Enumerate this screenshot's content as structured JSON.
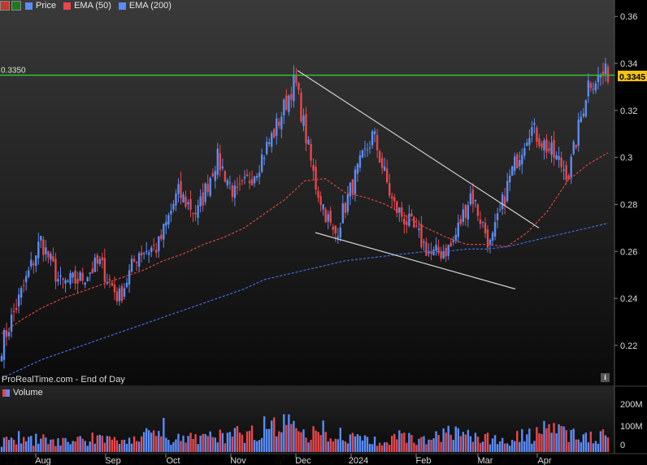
{
  "toolbar": {
    "legend_price": "Price",
    "legend_ema50": "EMA (50)",
    "legend_ema200": "EMA (200)",
    "legend_volume": "Volume",
    "close_icon": "close-icon",
    "arrow_icon": "trend-up-icon"
  },
  "watermark": "ProRealTime.com - End of Day",
  "info_icon": "i",
  "colors": {
    "up": "#5a8cf5",
    "down": "#e8474b",
    "ema50": "#d9453e",
    "ema200": "#3e6ee0",
    "level_line": "#2ec42e",
    "price_badge": "#f2c40e",
    "trendline": "#cfcfcf"
  },
  "chart_data": [
    {
      "type": "candlestick",
      "title": "",
      "series": [
        {
          "name": "Price",
          "kind": "candles"
        },
        {
          "name": "EMA (50)",
          "kind": "line",
          "style": "dashed",
          "values": [
            0.225,
            0.231,
            0.236,
            0.24,
            0.243,
            0.246,
            0.249,
            0.252,
            0.256,
            0.259,
            0.263,
            0.266,
            0.27,
            0.276,
            0.282,
            0.29,
            0.291,
            0.285,
            0.283,
            0.28,
            0.275,
            0.27,
            0.266,
            0.263,
            0.263,
            0.262,
            0.268,
            0.277,
            0.29,
            0.297,
            0.302
          ]
        },
        {
          "name": "EMA (200)",
          "kind": "line",
          "style": "dashed",
          "values": [
            0.206,
            0.21,
            0.214,
            0.217,
            0.22,
            0.223,
            0.226,
            0.229,
            0.232,
            0.235,
            0.238,
            0.241,
            0.244,
            0.248,
            0.25,
            0.252,
            0.254,
            0.256,
            0.257,
            0.258,
            0.259,
            0.26,
            0.26,
            0.261,
            0.261,
            0.262,
            0.264,
            0.266,
            0.268,
            0.27,
            0.272
          ]
        }
      ],
      "x_tick_labels": [
        "Aug",
        "Sep",
        "Oct",
        "Nov",
        "Dec",
        "2024",
        "Feb",
        "Mar",
        "Apr"
      ],
      "y_tick_labels": [
        "0.36",
        "0.34",
        "0.32",
        "0.3",
        "0.28",
        "0.26",
        "0.24",
        "0.22"
      ],
      "ylim": [
        0.203,
        0.367
      ],
      "level_line": {
        "value": 0.335,
        "label": "0.3350"
      },
      "last_price": {
        "value": 0.3345,
        "label": "0.3345"
      },
      "trendlines": [
        {
          "name": "upper",
          "from": {
            "x": "Dec",
            "y": 0.336
          },
          "to": {
            "x": "Mar",
            "y": 0.271
          }
        },
        {
          "name": "lower",
          "from": {
            "x": "Dec",
            "y": 0.268
          },
          "to": {
            "x": "Mar",
            "y": 0.244
          }
        }
      ],
      "price_path_anchors": [
        0.22,
        0.242,
        0.265,
        0.246,
        0.248,
        0.255,
        0.24,
        0.26,
        0.262,
        0.285,
        0.276,
        0.3,
        0.283,
        0.295,
        0.312,
        0.333,
        0.29,
        0.266,
        0.29,
        0.31,
        0.28,
        0.27,
        0.258,
        0.262,
        0.285,
        0.262,
        0.292,
        0.313,
        0.303,
        0.293,
        0.332,
        0.336
      ],
      "grid": false,
      "legend": "top-left"
    },
    {
      "type": "bar",
      "title": "Volume",
      "y_tick_labels": [
        "200M",
        "100M",
        "0"
      ],
      "ylim": [
        0,
        280
      ],
      "unit": "M",
      "volume_profile_anchors": [
        40,
        55,
        45,
        35,
        50,
        45,
        40,
        60,
        50,
        45,
        55,
        60,
        70,
        90,
        120,
        60,
        80,
        55,
        45,
        50,
        60,
        40,
        70,
        55,
        50,
        45,
        60,
        80,
        70,
        55,
        65
      ]
    }
  ]
}
